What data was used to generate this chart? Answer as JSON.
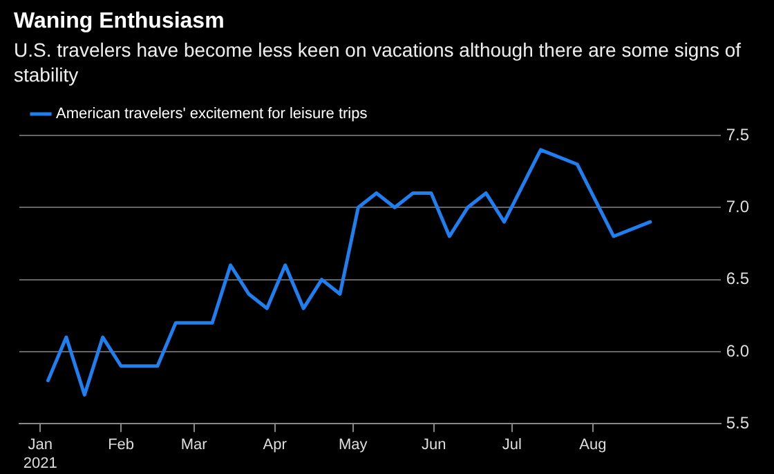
{
  "chart_data": {
    "type": "line",
    "title": "Waning Enthusiasm",
    "subtitle": "U.S. travelers have become less keen on vacations although there are some signs of stability",
    "x": [
      "2021-01-04",
      "2021-01-11",
      "2021-01-18",
      "2021-01-25",
      "2021-02-01",
      "2021-02-08",
      "2021-02-15",
      "2021-02-22",
      "2021-03-01",
      "2021-03-08",
      "2021-03-15",
      "2021-03-22",
      "2021-03-29",
      "2021-04-05",
      "2021-04-12",
      "2021-04-19",
      "2021-04-26",
      "2021-05-03",
      "2021-05-10",
      "2021-05-17",
      "2021-05-24",
      "2021-05-31",
      "2021-06-07",
      "2021-06-14",
      "2021-06-21",
      "2021-06-28",
      "2021-07-12",
      "2021-07-26",
      "2021-08-09",
      "2021-08-23"
    ],
    "series": [
      {
        "name": "American travelers' excitement for leisure trips",
        "color": "#1f7ff0",
        "values": [
          5.8,
          6.1,
          5.7,
          6.1,
          5.9,
          5.9,
          5.9,
          6.2,
          6.2,
          6.2,
          6.6,
          6.4,
          6.3,
          6.6,
          6.3,
          6.5,
          6.4,
          7.0,
          7.1,
          7.0,
          7.1,
          7.1,
          6.8,
          7.0,
          7.1,
          6.9,
          7.4,
          7.3,
          6.8,
          6.9
        ]
      }
    ],
    "xlim": [
      "2020-12-24",
      "2021-09-19"
    ],
    "xticks": [
      {
        "value": "2021-01-01",
        "label": "Jan\n2021"
      },
      {
        "value": "2021-02-01",
        "label": "Feb"
      },
      {
        "value": "2021-03-01",
        "label": "Mar"
      },
      {
        "value": "2021-04-01",
        "label": "Apr"
      },
      {
        "value": "2021-05-01",
        "label": "May"
      },
      {
        "value": "2021-06-01",
        "label": "Jun"
      },
      {
        "value": "2021-07-01",
        "label": "Jul"
      },
      {
        "value": "2021-08-01",
        "label": "Aug"
      }
    ],
    "ylim": [
      5.5,
      7.5
    ],
    "yticks": [
      {
        "value": 5.5,
        "label": "5.5"
      },
      {
        "value": 6,
        "label": "6.0"
      },
      {
        "value": 6.5,
        "label": "6.5"
      },
      {
        "value": 7,
        "label": "7.0"
      },
      {
        "value": 7.5,
        "label": "7.5"
      }
    ],
    "grid": "y",
    "legend": "top left",
    "marker": "none",
    "line_style": "solid"
  }
}
